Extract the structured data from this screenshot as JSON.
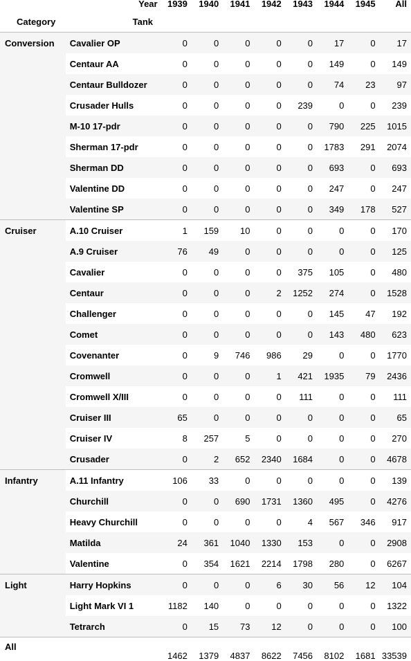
{
  "header": {
    "year_label": "Year",
    "years": [
      "1939",
      "1940",
      "1941",
      "1942",
      "1943",
      "1944",
      "1945",
      "All"
    ],
    "category_label": "Category",
    "tank_label": "Tank"
  },
  "groups": [
    {
      "category": "Conversion",
      "rows": [
        {
          "tank": "Cavalier OP",
          "values": [
            "0",
            "0",
            "0",
            "0",
            "0",
            "17",
            "0",
            "17"
          ]
        },
        {
          "tank": "Centaur AA",
          "values": [
            "0",
            "0",
            "0",
            "0",
            "0",
            "149",
            "0",
            "149"
          ]
        },
        {
          "tank": "Centaur Bulldozer",
          "values": [
            "0",
            "0",
            "0",
            "0",
            "0",
            "74",
            "23",
            "97"
          ]
        },
        {
          "tank": "Crusader Hulls",
          "values": [
            "0",
            "0",
            "0",
            "0",
            "239",
            "0",
            "0",
            "239"
          ]
        },
        {
          "tank": "M-10 17-pdr",
          "values": [
            "0",
            "0",
            "0",
            "0",
            "0",
            "790",
            "225",
            "1015"
          ]
        },
        {
          "tank": "Sherman 17-pdr",
          "values": [
            "0",
            "0",
            "0",
            "0",
            "0",
            "1783",
            "291",
            "2074"
          ]
        },
        {
          "tank": "Sherman DD",
          "values": [
            "0",
            "0",
            "0",
            "0",
            "0",
            "693",
            "0",
            "693"
          ]
        },
        {
          "tank": "Valentine DD",
          "values": [
            "0",
            "0",
            "0",
            "0",
            "0",
            "247",
            "0",
            "247"
          ]
        },
        {
          "tank": "Valentine SP",
          "values": [
            "0",
            "0",
            "0",
            "0",
            "0",
            "349",
            "178",
            "527"
          ]
        }
      ]
    },
    {
      "category": "Cruiser",
      "rows": [
        {
          "tank": "A.10 Cruiser",
          "values": [
            "1",
            "159",
            "10",
            "0",
            "0",
            "0",
            "0",
            "170"
          ]
        },
        {
          "tank": "A.9 Cruiser",
          "values": [
            "76",
            "49",
            "0",
            "0",
            "0",
            "0",
            "0",
            "125"
          ]
        },
        {
          "tank": "Cavalier",
          "values": [
            "0",
            "0",
            "0",
            "0",
            "375",
            "105",
            "0",
            "480"
          ]
        },
        {
          "tank": "Centaur",
          "values": [
            "0",
            "0",
            "0",
            "2",
            "1252",
            "274",
            "0",
            "1528"
          ]
        },
        {
          "tank": "Challenger",
          "values": [
            "0",
            "0",
            "0",
            "0",
            "0",
            "145",
            "47",
            "192"
          ]
        },
        {
          "tank": "Comet",
          "values": [
            "0",
            "0",
            "0",
            "0",
            "0",
            "143",
            "480",
            "623"
          ]
        },
        {
          "tank": "Covenanter",
          "values": [
            "0",
            "9",
            "746",
            "986",
            "29",
            "0",
            "0",
            "1770"
          ]
        },
        {
          "tank": "Cromwell",
          "values": [
            "0",
            "0",
            "0",
            "1",
            "421",
            "1935",
            "79",
            "2436"
          ]
        },
        {
          "tank": "Cromwell X/III",
          "values": [
            "0",
            "0",
            "0",
            "0",
            "111",
            "0",
            "0",
            "111"
          ]
        },
        {
          "tank": "Cruiser III",
          "values": [
            "65",
            "0",
            "0",
            "0",
            "0",
            "0",
            "0",
            "65"
          ]
        },
        {
          "tank": "Cruiser IV",
          "values": [
            "8",
            "257",
            "5",
            "0",
            "0",
            "0",
            "0",
            "270"
          ]
        },
        {
          "tank": "Crusader",
          "values": [
            "0",
            "2",
            "652",
            "2340",
            "1684",
            "0",
            "0",
            "4678"
          ]
        }
      ]
    },
    {
      "category": "Infantry",
      "rows": [
        {
          "tank": "A.11 Infantry",
          "values": [
            "106",
            "33",
            "0",
            "0",
            "0",
            "0",
            "0",
            "139"
          ]
        },
        {
          "tank": "Churchill",
          "values": [
            "0",
            "0",
            "690",
            "1731",
            "1360",
            "495",
            "0",
            "4276"
          ]
        },
        {
          "tank": "Heavy Churchill",
          "values": [
            "0",
            "0",
            "0",
            "0",
            "4",
            "567",
            "346",
            "917"
          ]
        },
        {
          "tank": "Matilda",
          "values": [
            "24",
            "361",
            "1040",
            "1330",
            "153",
            "0",
            "0",
            "2908"
          ]
        },
        {
          "tank": "Valentine",
          "values": [
            "0",
            "354",
            "1621",
            "2214",
            "1798",
            "280",
            "0",
            "6267"
          ]
        }
      ]
    },
    {
      "category": "Light",
      "rows": [
        {
          "tank": "Harry Hopkins",
          "values": [
            "0",
            "0",
            "0",
            "6",
            "30",
            "56",
            "12",
            "104"
          ]
        },
        {
          "tank": "Light Mark VI 1",
          "values": [
            "1182",
            "140",
            "0",
            "0",
            "0",
            "0",
            "0",
            "1322"
          ]
        },
        {
          "tank": "Tetrarch",
          "values": [
            "0",
            "15",
            "73",
            "12",
            "0",
            "0",
            "0",
            "100"
          ]
        }
      ]
    }
  ],
  "total": {
    "label": "All",
    "values": [
      "1462",
      "1379",
      "4837",
      "8622",
      "7456",
      "8102",
      "1681",
      "33539"
    ]
  }
}
